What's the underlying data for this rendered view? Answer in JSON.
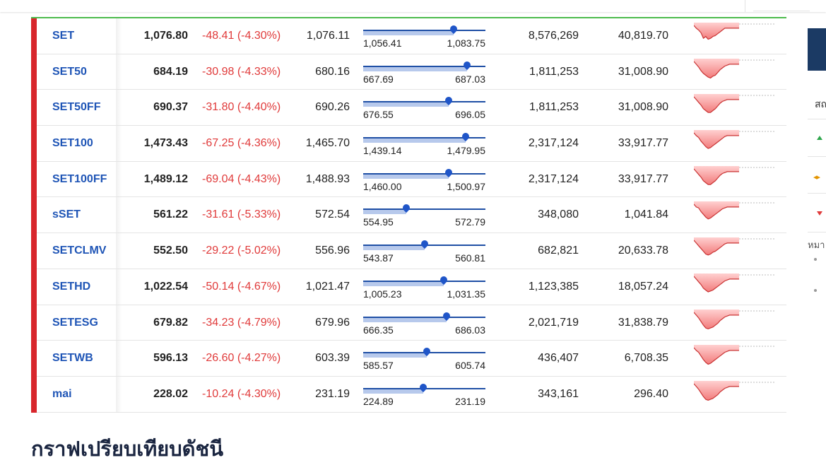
{
  "colors": {
    "name": "#1f55b6",
    "negative": "#e03a3a",
    "accent_bar": "#d8262c",
    "top_border": "#4cbb4c",
    "range_line": "#1f4fa5",
    "range_fill": "#b7c9ec",
    "spark_fill": "#f27b7b"
  },
  "indices": [
    {
      "name": "SET",
      "last": "1,076.80",
      "change": "-48.41 (-4.30%)",
      "prior": "1,076.11",
      "low": "1,056.41",
      "high": "1,083.75",
      "volume": "8,576,269",
      "value": "40,819.70",
      "position": 0.74
    },
    {
      "name": "SET50",
      "last": "684.19",
      "change": "-30.98 (-4.33%)",
      "prior": "680.16",
      "low": "667.69",
      "high": "687.03",
      "volume": "1,811,253",
      "value": "31,008.90",
      "position": 0.85
    },
    {
      "name": "SET50FF",
      "last": "690.37",
      "change": "-31.80 (-4.40%)",
      "prior": "690.26",
      "low": "676.55",
      "high": "696.05",
      "volume": "1,811,253",
      "value": "31,008.90",
      "position": 0.7
    },
    {
      "name": "SET100",
      "last": "1,473.43",
      "change": "-67.25 (-4.36%)",
      "prior": "1,465.70",
      "low": "1,439.14",
      "high": "1,479.95",
      "volume": "2,317,124",
      "value": "33,917.77",
      "position": 0.84
    },
    {
      "name": "SET100FF",
      "last": "1,489.12",
      "change": "-69.04 (-4.43%)",
      "prior": "1,488.93",
      "low": "1,460.00",
      "high": "1,500.97",
      "volume": "2,317,124",
      "value": "33,917.77",
      "position": 0.7
    },
    {
      "name": "sSET",
      "last": "561.22",
      "change": "-31.61 (-5.33%)",
      "prior": "572.54",
      "low": "554.95",
      "high": "572.79",
      "volume": "348,080",
      "value": "1,041.84",
      "position": 0.35
    },
    {
      "name": "SETCLMV",
      "last": "552.50",
      "change": "-29.22 (-5.02%)",
      "prior": "556.96",
      "low": "543.87",
      "high": "560.81",
      "volume": "682,821",
      "value": "20,633.78",
      "position": 0.5
    },
    {
      "name": "SETHD",
      "last": "1,022.54",
      "change": "-50.14 (-4.67%)",
      "prior": "1,021.47",
      "low": "1,005.23",
      "high": "1,031.35",
      "volume": "1,123,385",
      "value": "18,057.24",
      "position": 0.66
    },
    {
      "name": "SETESG",
      "last": "679.82",
      "change": "-34.23 (-4.79%)",
      "prior": "679.96",
      "low": "666.35",
      "high": "686.03",
      "volume": "2,021,719",
      "value": "31,838.79",
      "position": 0.68
    },
    {
      "name": "SETWB",
      "last": "596.13",
      "change": "-26.60 (-4.27%)",
      "prior": "603.39",
      "low": "585.57",
      "high": "605.74",
      "volume": "436,407",
      "value": "6,708.35",
      "position": 0.52
    },
    {
      "name": "mai",
      "last": "228.02",
      "change": "-10.24 (-4.30%)",
      "prior": "231.19",
      "low": "224.89",
      "high": "231.19",
      "volume": "343,161",
      "value": "296.40",
      "position": 0.49
    }
  ],
  "section_heading": "กราฟเปรียบเทียบดัชนี",
  "side": {
    "label": "สถ",
    "caption": "หมา"
  }
}
